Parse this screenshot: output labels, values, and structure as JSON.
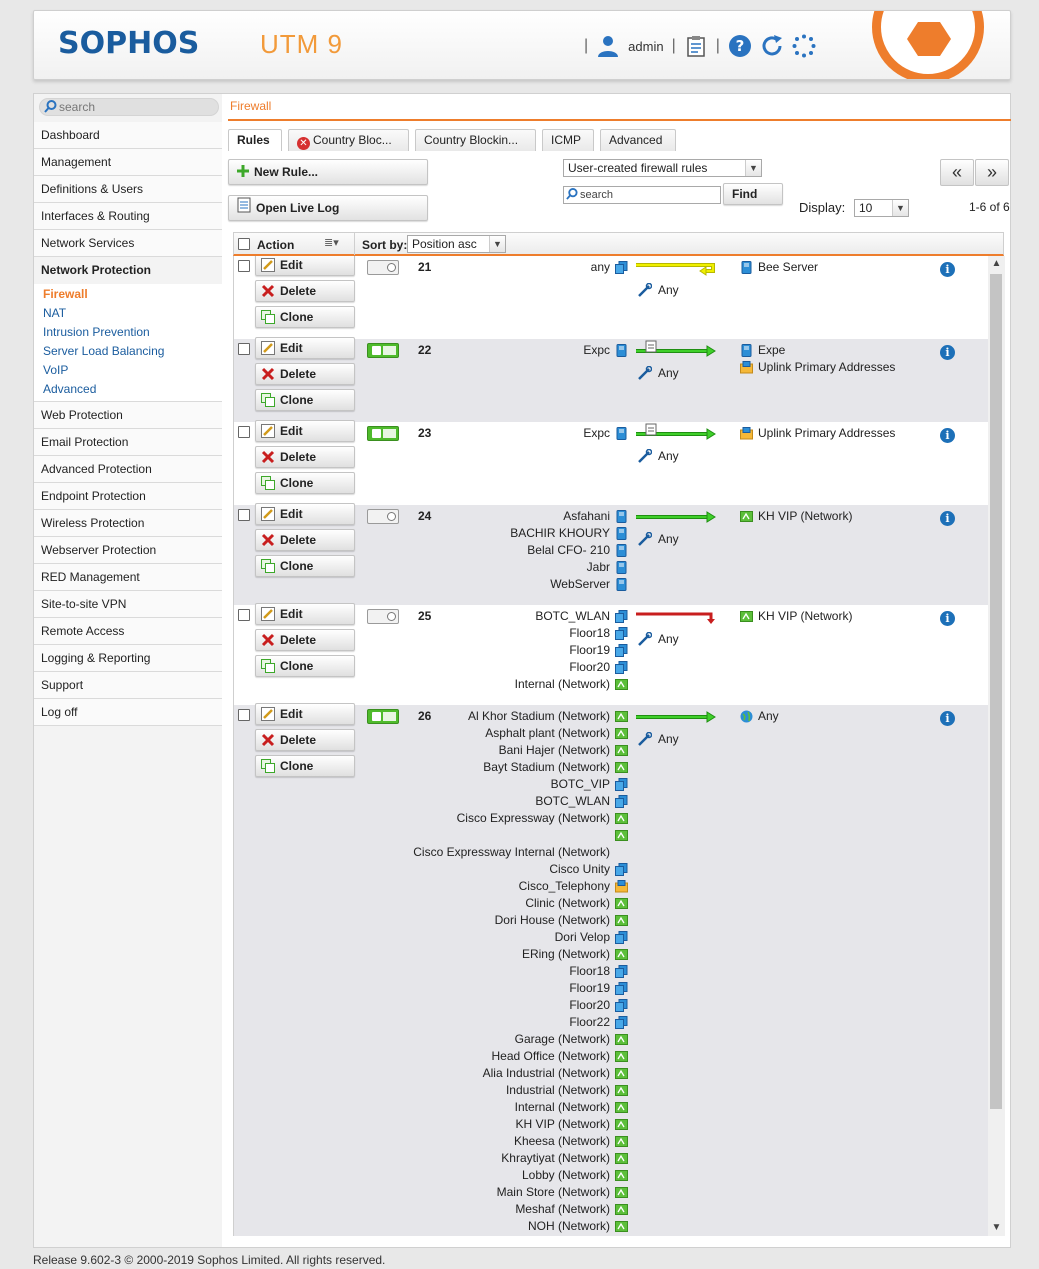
{
  "header": {
    "logo": "SOPHOS",
    "product": "UTM 9",
    "user": "admin"
  },
  "sidebar": {
    "search_placeholder": "search",
    "items_before": [
      "Dashboard",
      "Management",
      "Definitions & Users",
      "Interfaces & Routing",
      "Network Services"
    ],
    "active_group": "Network Protection",
    "sub_items": [
      "Firewall",
      "NAT",
      "Intrusion Prevention",
      "Server Load Balancing",
      "VoIP",
      "Advanced"
    ],
    "items_after": [
      "Web Protection",
      "Email Protection",
      "Advanced Protection",
      "Endpoint Protection",
      "Wireless Protection",
      "Webserver Protection",
      "RED Management",
      "Site-to-site VPN",
      "Remote Access",
      "Logging & Reporting",
      "Support",
      "Log off"
    ]
  },
  "breadcrumb": "Firewall",
  "tabs": [
    "Rules",
    "Country Bloc...",
    "Country Blockin...",
    "ICMP",
    "Advanced"
  ],
  "toolbar": {
    "new_rule": "New Rule...",
    "open_live_log": "Open Live Log",
    "filter_value": "User-created firewall rules",
    "search_placeholder": "search",
    "find": "Find",
    "prev": "«",
    "next": "»",
    "display_label": "Display:",
    "display_value": "10",
    "range": "1-6 of 6"
  },
  "table": {
    "action_header": "Action",
    "sort_label": "Sort by:",
    "sort_value": "Position asc",
    "btn_edit": "Edit",
    "btn_delete": "Delete",
    "btn_clone": "Clone",
    "rules": [
      {
        "position": "21",
        "enabled": false,
        "arrow": "yellow",
        "service": "Any",
        "sources": [
          {
            "n": "any",
            "t": "netgroup"
          }
        ],
        "destinations": [
          {
            "n": "Bee Server",
            "t": "host"
          }
        ]
      },
      {
        "position": "22",
        "enabled": true,
        "arrow": "green",
        "service": "Any",
        "sources": [
          {
            "n": "Expc",
            "t": "host"
          }
        ],
        "destinations": [
          {
            "n": "Expe",
            "t": "host"
          },
          {
            "n": "Uplink Primary Addresses",
            "t": "folder"
          }
        ]
      },
      {
        "position": "23",
        "enabled": true,
        "arrow": "green",
        "service": "Any",
        "sources": [
          {
            "n": "Expc",
            "t": "host"
          }
        ],
        "destinations": [
          {
            "n": "Uplink Primary Addresses",
            "t": "folder"
          }
        ]
      },
      {
        "position": "24",
        "enabled": false,
        "arrow": "green",
        "service": "Any",
        "sources": [
          {
            "n": "Asfahani",
            "t": "host"
          },
          {
            "n": "BACHIR KHOURY",
            "t": "host"
          },
          {
            "n": "Belal CFO- 210",
            "t": "host"
          },
          {
            "n": "Jabr",
            "t": "host"
          },
          {
            "n": "WebServer",
            "t": "host"
          }
        ],
        "destinations": [
          {
            "n": "KH VIP (Network)",
            "t": "network"
          }
        ]
      },
      {
        "position": "25",
        "enabled": false,
        "arrow": "red",
        "service": "Any",
        "sources": [
          {
            "n": "BOTC_WLAN",
            "t": "netgroup"
          },
          {
            "n": "Floor18",
            "t": "netgroup"
          },
          {
            "n": "Floor19",
            "t": "netgroup"
          },
          {
            "n": "Floor20",
            "t": "netgroup"
          },
          {
            "n": "Internal (Network)",
            "t": "network"
          }
        ],
        "destinations": [
          {
            "n": "KH VIP (Network)",
            "t": "network"
          }
        ]
      },
      {
        "position": "26",
        "enabled": true,
        "arrow": "green",
        "service": "Any",
        "sources": [
          {
            "n": "Al Khor Stadium (Network)",
            "t": "network"
          },
          {
            "n": "Asphalt plant (Network)",
            "t": "network"
          },
          {
            "n": "Bani Hajer (Network)",
            "t": "network"
          },
          {
            "n": "Bayt Stadium (Network)",
            "t": "network"
          },
          {
            "n": "BOTC_VIP",
            "t": "netgroup"
          },
          {
            "n": "BOTC_WLAN",
            "t": "netgroup"
          },
          {
            "n": "Cisco Expressway (Network)",
            "t": "network"
          },
          {
            "n": "",
            "t": "network"
          },
          {
            "n": "Cisco Expressway Internal (Network)",
            "t": "none"
          },
          {
            "n": "Cisco Unity",
            "t": "netgroup"
          },
          {
            "n": "Cisco_Telephony",
            "t": "folder"
          },
          {
            "n": "Clinic (Network)",
            "t": "network"
          },
          {
            "n": "Dori House (Network)",
            "t": "network"
          },
          {
            "n": "Dori Velop",
            "t": "netgroup"
          },
          {
            "n": "ERing (Network)",
            "t": "network"
          },
          {
            "n": "Floor18",
            "t": "netgroup"
          },
          {
            "n": "Floor19",
            "t": "netgroup"
          },
          {
            "n": "Floor20",
            "t": "netgroup"
          },
          {
            "n": "Floor22",
            "t": "netgroup"
          },
          {
            "n": "Garage (Network)",
            "t": "network"
          },
          {
            "n": "Head Office (Network)",
            "t": "network"
          },
          {
            "n": "Alia Industrial (Network)",
            "t": "network"
          },
          {
            "n": "Industrial (Network)",
            "t": "network"
          },
          {
            "n": "Internal (Network)",
            "t": "network"
          },
          {
            "n": "KH VIP (Network)",
            "t": "network"
          },
          {
            "n": "Kheesa (Network)",
            "t": "network"
          },
          {
            "n": "Khraytiyat (Network)",
            "t": "network"
          },
          {
            "n": "Lobby (Network)",
            "t": "network"
          },
          {
            "n": "Main Store (Network)",
            "t": "network"
          },
          {
            "n": "Meshaf (Network)",
            "t": "network"
          },
          {
            "n": "NOH (Network)",
            "t": "network"
          }
        ],
        "destinations": [
          {
            "n": "Any",
            "t": "globe"
          }
        ]
      }
    ]
  },
  "footer": "Release 9.602-3  © 2000-2019 Sophos Limited. All rights reserved.",
  "colors": {
    "accent": "#ee7d2c",
    "brand": "#1a5c9e",
    "toggle_on": "#4fbb2c",
    "arrow_green": "#3fcf2a",
    "arrow_red": "#c81e1e",
    "arrow_yellow": "#f0f000"
  }
}
